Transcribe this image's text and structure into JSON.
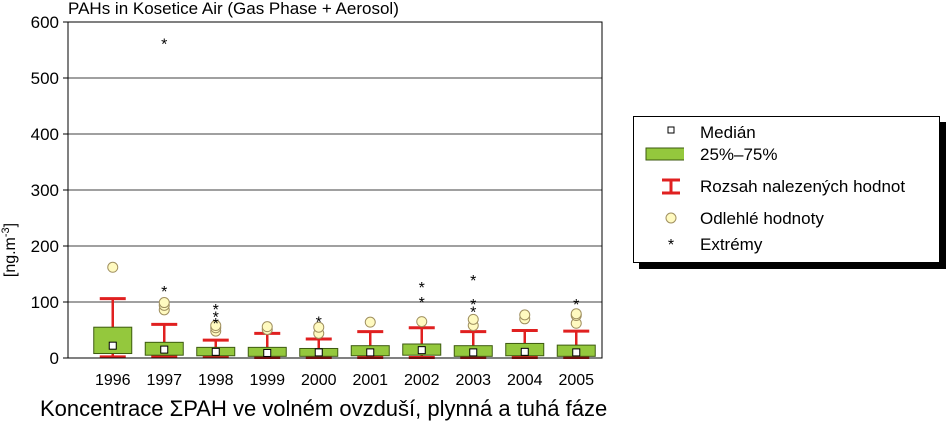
{
  "chart_data": {
    "type": "boxplot",
    "title": "PAHs in Kosetice Air (Gas Phase + Aerosol)",
    "ylabel": "[ng.m-3]",
    "ylim": [
      0,
      600
    ],
    "yticks": [
      0,
      100,
      200,
      300,
      400,
      500,
      600
    ],
    "grid": true,
    "categories": [
      "1996",
      "1997",
      "1998",
      "1999",
      "2000",
      "2001",
      "2002",
      "2003",
      "2004",
      "2005"
    ],
    "boxes": [
      {
        "category": "1996",
        "whisker_low": 2,
        "q1": 8,
        "median": 22,
        "q3": 55,
        "whisker_high": 106,
        "outliers": [
          162
        ],
        "extremes": []
      },
      {
        "category": "1997",
        "whisker_low": 2,
        "q1": 5,
        "median": 15,
        "q3": 28,
        "whisker_high": 60,
        "outliers": [
          86,
          94,
          99
        ],
        "extremes": [
          123,
          565
        ]
      },
      {
        "category": "1998",
        "whisker_low": 2,
        "q1": 4,
        "median": 11,
        "q3": 19,
        "whisker_high": 32,
        "outliers": [
          48,
          54,
          58
        ],
        "extremes": [
          66,
          78,
          91
        ]
      },
      {
        "category": "1999",
        "whisker_low": 1,
        "q1": 3,
        "median": 9,
        "q3": 19,
        "whisker_high": 44,
        "outliers": [
          51,
          56
        ],
        "extremes": []
      },
      {
        "category": "2000",
        "whisker_low": 1,
        "q1": 3,
        "median": 10,
        "q3": 17,
        "whisker_high": 34,
        "outliers": [
          44,
          55
        ],
        "extremes": [
          69
        ]
      },
      {
        "category": "2001",
        "whisker_low": 1,
        "q1": 4,
        "median": 10,
        "q3": 22,
        "whisker_high": 47,
        "outliers": [
          64
        ],
        "extremes": []
      },
      {
        "category": "2002",
        "whisker_low": 1,
        "q1": 5,
        "median": 14,
        "q3": 25,
        "whisker_high": 54,
        "outliers": [
          65
        ],
        "extremes": [
          104,
          130
        ]
      },
      {
        "category": "2003",
        "whisker_low": 1,
        "q1": 3,
        "median": 10,
        "q3": 22,
        "whisker_high": 47,
        "outliers": [
          58,
          69
        ],
        "extremes": [
          87,
          100,
          143
        ]
      },
      {
        "category": "2004",
        "whisker_low": 1,
        "q1": 4,
        "median": 11,
        "q3": 26,
        "whisker_high": 49,
        "outliers": [
          70,
          77
        ],
        "extremes": []
      },
      {
        "category": "2005",
        "whisker_low": 1,
        "q1": 3,
        "median": 10,
        "q3": 23,
        "whisker_high": 48,
        "outliers": [
          62,
          76,
          79
        ],
        "extremes": [
          100
        ]
      }
    ],
    "legend": {
      "placement": "right",
      "items": [
        {
          "symbol": "median",
          "label": "Medián"
        },
        {
          "symbol": "box",
          "label": "25%–75%"
        },
        {
          "symbol": "whisker",
          "label": "Rozsah nalezených hodnot"
        },
        {
          "symbol": "outlier",
          "label": "Odlehlé hodnoty"
        },
        {
          "symbol": "extreme",
          "label": "Extrémy"
        }
      ]
    },
    "colors": {
      "box_fill": "#94c83d",
      "box_stroke": "#3d5a10",
      "whisker": "#e02020",
      "outlier_fill": "#fffac0",
      "outlier_stroke": "#a09060",
      "median_fill": "#ffffff",
      "grid": "#000000"
    }
  },
  "caption": "Koncentrace ΣPAH ve volném ovzduší, plynná a tuhá fáze"
}
